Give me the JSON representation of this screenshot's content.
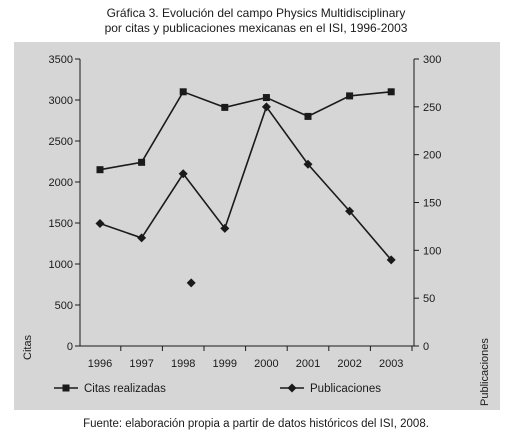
{
  "title_line1": "Gráfica 3. Evolución del campo Physics Multidisciplinary",
  "title_line2": "por citas y publicaciones mexicanas en el ISI, 1996-2003",
  "footer": "Fuente: elaboración propia a partir de datos históricos del ISI, 2008.",
  "chart_data": {
    "type": "line",
    "x": [
      "1996",
      "1997",
      "1998",
      "1999",
      "2000",
      "2001",
      "2002",
      "2003"
    ],
    "ylabel_left": "Citas",
    "ylabel_right": "Publicaciones",
    "ylim_left": [
      0,
      3500
    ],
    "ylim_right": [
      0,
      300
    ],
    "yticks_left": [
      "0",
      "500",
      "1000",
      "1500",
      "2000",
      "2500",
      "3000",
      "3500"
    ],
    "yticks_right": [
      "0",
      "50",
      "100",
      "150",
      "200",
      "250",
      "300"
    ],
    "grid": false,
    "legend_position": "bottom",
    "series": [
      {
        "name": "Citas realizadas",
        "axis": "left",
        "marker": "square",
        "values": [
          2150,
          2240,
          3100,
          2910,
          3030,
          2800,
          3050,
          3100
        ]
      },
      {
        "name": "Publicaciones",
        "axis": "right",
        "marker": "diamond",
        "values": [
          128,
          113,
          180,
          123,
          250,
          190,
          141,
          90
        ]
      }
    ],
    "outlier_points": [
      {
        "x": "1998",
        "axis": "right",
        "value": 66
      }
    ]
  }
}
